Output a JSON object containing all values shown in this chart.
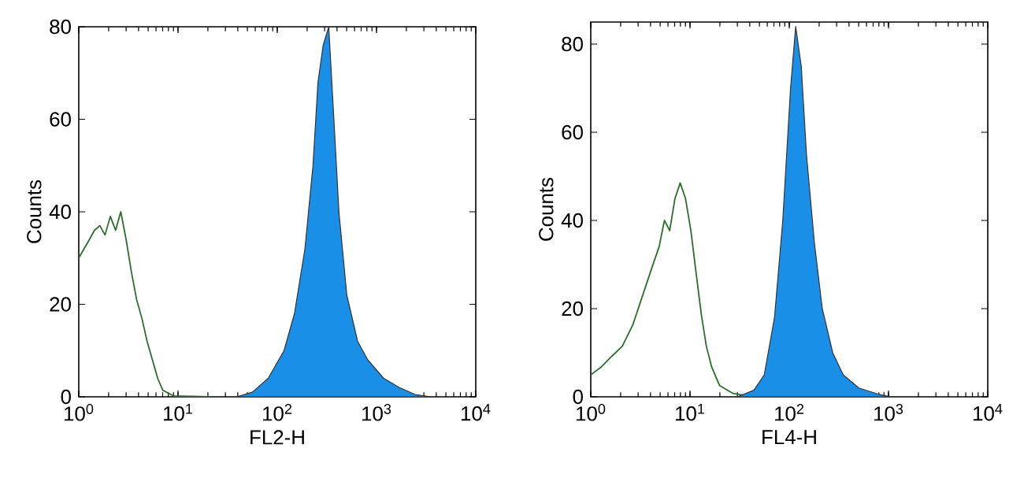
{
  "chart_data": [
    {
      "type": "line",
      "xlabel": "FL2-H",
      "ylabel": "Counts",
      "log": "x",
      "xlim": [
        1,
        10000
      ],
      "ylim": [
        0,
        80
      ],
      "xticks": [
        {
          "value": 1,
          "label": "10$^{0}$"
        },
        {
          "value": 10,
          "label": "10$^{1}$"
        },
        {
          "value": 100,
          "label": "10$^{2}$"
        },
        {
          "value": 1000,
          "label": "10$^{3}$"
        },
        {
          "value": 10000,
          "label": "10$^{4}$"
        }
      ],
      "yticks": [
        0,
        20,
        40,
        60,
        80
      ],
      "series": [
        {
          "color": "#2a6e2a",
          "x": [
            1,
            1.13,
            1.28,
            1.44,
            1.63,
            1.84,
            2.08,
            2.35,
            2.65,
            3.0,
            3.39,
            3.83,
            4.32,
            4.88,
            5.52,
            6.24,
            7.04,
            9.0,
            21
          ],
          "values": [
            30,
            32,
            34,
            36,
            37,
            35,
            39,
            36,
            40,
            34,
            27,
            21,
            17,
            12,
            8,
            4,
            1.4,
            0.2,
            0
          ]
        },
        {
          "type": "area",
          "color": "#1a8fe8",
          "x": [
            39,
            56,
            81,
            117,
            149,
            190,
            229,
            257,
            290,
            330,
            372,
            418,
            502,
            645,
            815,
            1180,
            1700,
            2450,
            3540
          ],
          "values": [
            0,
            1,
            4,
            10,
            18,
            32,
            50,
            68,
            76,
            80,
            60,
            40,
            22,
            12,
            8,
            4,
            2,
            0.5,
            0
          ]
        }
      ]
    },
    {
      "type": "line",
      "xlabel": "FL4-H",
      "ylabel": "Counts",
      "log": "x",
      "xlim": [
        1,
        10000
      ],
      "ylim": [
        0,
        85
      ],
      "xticks": [
        {
          "value": 1,
          "label": "10$^{0}$"
        },
        {
          "value": 10,
          "label": "10$^{1}$"
        },
        {
          "value": 100,
          "label": "10$^{2}$"
        },
        {
          "value": 1000,
          "label": "10$^{3}$"
        },
        {
          "value": 10000,
          "label": "10$^{4}$"
        }
      ],
      "yticks": [
        0,
        20,
        40,
        60,
        80
      ],
      "series": [
        {
          "color": "#2a6e2a",
          "x": [
            1,
            1.28,
            1.63,
            2.08,
            2.65,
            3.39,
            4.32,
            4.88,
            5.52,
            6.24,
            7.04,
            7.96,
            9.0,
            10.2,
            11.5,
            13.0,
            14.6,
            16.5,
            19.8,
            26.9,
            38.9
          ],
          "values": [
            5,
            6.8,
            9.2,
            11.5,
            16.3,
            23.5,
            30.6,
            34,
            40,
            37.7,
            44.9,
            48.5,
            45,
            37.7,
            28.2,
            18.7,
            11.5,
            6.8,
            2.6,
            0.8,
            0.2
          ]
        },
        {
          "type": "area",
          "color": "#1a8fe8",
          "x": [
            30,
            44,
            56,
            71,
            86,
            103,
            116,
            132,
            149,
            179,
            215,
            274,
            349,
            502,
            815,
            1050
          ],
          "values": [
            0,
            1.5,
            5,
            18,
            40,
            70,
            84,
            75,
            55,
            35,
            20,
            10,
            5,
            2,
            0.5,
            0
          ]
        }
      ]
    }
  ]
}
